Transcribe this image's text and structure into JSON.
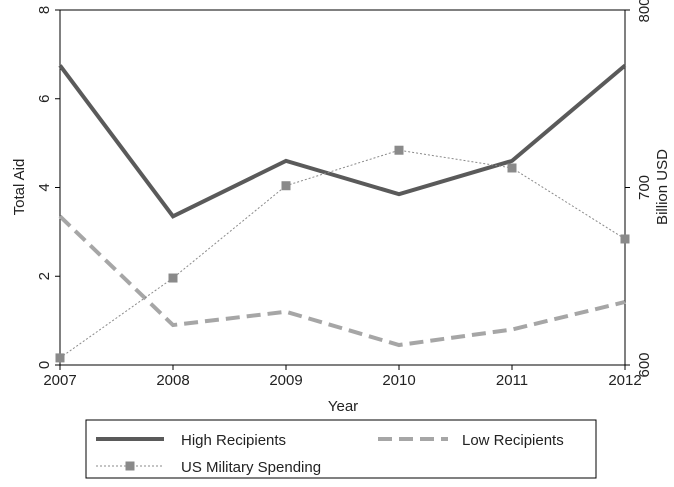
{
  "chart_data": {
    "type": "line",
    "x": [
      2007,
      2008,
      2009,
      2010,
      2011,
      2012
    ],
    "xlabel": "Year",
    "ylabel_left": "Total Aid",
    "ylabel_right": "Billion USD",
    "ylim_left": [
      0,
      8
    ],
    "ylim_right": [
      600,
      800
    ],
    "yticks_left": [
      0,
      2,
      4,
      6,
      8
    ],
    "yticks_right": [
      600,
      700,
      800
    ],
    "grid": false,
    "legend_placement": "bottom",
    "series": [
      {
        "name": "High Recipients",
        "axis": "left",
        "style": "solid",
        "color": "#5a5a5a",
        "values": [
          6.75,
          3.35,
          4.6,
          3.85,
          4.6,
          6.75
        ]
      },
      {
        "name": "Low Recipients",
        "axis": "left",
        "style": "dashed",
        "color": "#a6a6a6",
        "values": [
          3.35,
          0.9,
          1.2,
          0.45,
          0.8,
          1.42
        ]
      },
      {
        "name": "US Military Spending",
        "axis": "right",
        "style": "dotted-square",
        "color": "#8a8a8a",
        "values": [
          604,
          649,
          701,
          721,
          711,
          671
        ]
      }
    ]
  }
}
